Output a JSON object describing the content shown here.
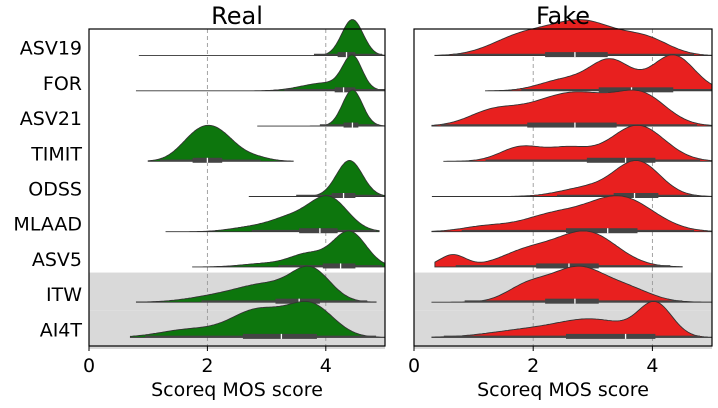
{
  "chart_data": {
    "type": "ridgeline-violin",
    "xlabel": "Scoreq MOS score",
    "xlim": [
      0,
      5
    ],
    "xticks": [
      0,
      2,
      4
    ],
    "categories": [
      "ASV19",
      "FOR",
      "ASV21",
      "TIMIT",
      "ODSS",
      "MLAAD",
      "ASV5",
      "ITW",
      "AI4T"
    ],
    "highlighted_categories": [
      "ITW",
      "AI4T"
    ],
    "grid_x": [
      2,
      4
    ],
    "panels": [
      {
        "title": "Real",
        "color": "#0d760d",
        "distributions": [
          {
            "category": "ASV19",
            "min": 0.85,
            "max": 5.0,
            "q1": 4.2,
            "median": 4.35,
            "q3": 4.5,
            "whisker_low": 3.8,
            "whisker_high": 4.95,
            "modes": [
              {
                "x": 4.45,
                "h": 1.0,
                "w": 0.18
              }
            ]
          },
          {
            "category": "FOR",
            "min": 0.8,
            "max": 5.0,
            "q1": 4.15,
            "median": 4.3,
            "q3": 4.5,
            "whisker_low": 3.3,
            "whisker_high": 5.0,
            "modes": [
              {
                "x": 4.45,
                "h": 1.0,
                "w": 0.16
              },
              {
                "x": 4.0,
                "h": 0.25,
                "w": 0.4
              }
            ]
          },
          {
            "category": "ASV21",
            "min": 2.85,
            "max": 5.0,
            "q1": 4.3,
            "median": 4.45,
            "q3": 4.55,
            "whisker_low": 3.9,
            "whisker_high": 4.9,
            "modes": [
              {
                "x": 4.45,
                "h": 1.0,
                "w": 0.17
              }
            ]
          },
          {
            "category": "TIMIT",
            "min": 1.0,
            "max": 3.45,
            "q1": 1.75,
            "median": 2.0,
            "q3": 2.25,
            "whisker_low": 1.2,
            "whisker_high": 2.9,
            "modes": [
              {
                "x": 1.85,
                "h": 1.0,
                "w": 0.3
              },
              {
                "x": 2.25,
                "h": 0.75,
                "w": 0.28
              },
              {
                "x": 2.8,
                "h": 0.15,
                "w": 0.25
              }
            ]
          },
          {
            "category": "ODSS",
            "min": 2.7,
            "max": 5.0,
            "q1": 4.1,
            "median": 4.3,
            "q3": 4.5,
            "whisker_low": 3.5,
            "whisker_high": 4.95,
            "modes": [
              {
                "x": 4.4,
                "h": 1.0,
                "w": 0.22
              }
            ]
          },
          {
            "category": "MLAAD",
            "min": 1.3,
            "max": 4.9,
            "q1": 3.55,
            "median": 3.9,
            "q3": 4.2,
            "whisker_low": 2.75,
            "whisker_high": 4.85,
            "modes": [
              {
                "x": 4.05,
                "h": 1.0,
                "w": 0.32
              },
              {
                "x": 3.4,
                "h": 0.4,
                "w": 0.35
              },
              {
                "x": 2.7,
                "h": 0.12,
                "w": 0.35
              }
            ]
          },
          {
            "category": "ASV5",
            "min": 1.75,
            "max": 5.0,
            "q1": 3.95,
            "median": 4.25,
            "q3": 4.5,
            "whisker_low": 3.2,
            "whisker_high": 4.95,
            "modes": [
              {
                "x": 4.4,
                "h": 1.0,
                "w": 0.28
              },
              {
                "x": 3.7,
                "h": 0.35,
                "w": 0.3
              },
              {
                "x": 3.0,
                "h": 0.1,
                "w": 0.4
              }
            ]
          },
          {
            "category": "ITW",
            "min": 0.8,
            "max": 4.85,
            "q1": 3.15,
            "median": 3.55,
            "q3": 3.9,
            "whisker_low": 1.9,
            "whisker_high": 4.7,
            "modes": [
              {
                "x": 3.75,
                "h": 1.0,
                "w": 0.33
              },
              {
                "x": 3.0,
                "h": 0.5,
                "w": 0.45
              },
              {
                "x": 2.2,
                "h": 0.2,
                "w": 0.5
              }
            ]
          },
          {
            "category": "AI4T",
            "min": 0.7,
            "max": 5.0,
            "q1": 2.6,
            "median": 3.25,
            "q3": 3.85,
            "whisker_low": 0.95,
            "whisker_high": 4.85,
            "modes": [
              {
                "x": 3.75,
                "h": 1.0,
                "w": 0.38
              },
              {
                "x": 2.85,
                "h": 0.85,
                "w": 0.45
              },
              {
                "x": 1.7,
                "h": 0.25,
                "w": 0.5
              }
            ]
          }
        ]
      },
      {
        "title": "Fake",
        "color": "#e8201f",
        "distributions": [
          {
            "category": "ASV19",
            "min": 0.35,
            "max": 5.0,
            "q1": 2.2,
            "median": 2.7,
            "q3": 3.25,
            "whisker_low": 0.65,
            "whisker_high": 4.7,
            "modes": [
              {
                "x": 2.85,
                "h": 1.0,
                "w": 0.55
              },
              {
                "x": 1.8,
                "h": 0.55,
                "w": 0.5
              },
              {
                "x": 3.9,
                "h": 0.45,
                "w": 0.4
              }
            ]
          },
          {
            "category": "FOR",
            "min": 1.2,
            "max": 5.0,
            "q1": 3.1,
            "median": 3.65,
            "q3": 4.35,
            "whisker_low": 1.8,
            "whisker_high": 5.0,
            "modes": [
              {
                "x": 3.3,
                "h": 0.85,
                "w": 0.35
              },
              {
                "x": 4.35,
                "h": 1.0,
                "w": 0.35
              },
              {
                "x": 2.5,
                "h": 0.3,
                "w": 0.4
              }
            ]
          },
          {
            "category": "ASV21",
            "min": 0.3,
            "max": 5.0,
            "q1": 1.9,
            "median": 2.7,
            "q3": 3.4,
            "whisker_low": 0.45,
            "whisker_high": 4.75,
            "modes": [
              {
                "x": 2.7,
                "h": 1.0,
                "w": 0.75
              },
              {
                "x": 3.85,
                "h": 0.7,
                "w": 0.4
              },
              {
                "x": 1.3,
                "h": 0.35,
                "w": 0.4
              }
            ]
          },
          {
            "category": "TIMIT",
            "min": 0.5,
            "max": 5.0,
            "q1": 2.9,
            "median": 3.55,
            "q3": 4.05,
            "whisker_low": 1.2,
            "whisker_high": 4.8,
            "modes": [
              {
                "x": 3.75,
                "h": 1.0,
                "w": 0.45
              },
              {
                "x": 1.8,
                "h": 0.4,
                "w": 0.35
              },
              {
                "x": 2.6,
                "h": 0.35,
                "w": 0.35
              }
            ]
          },
          {
            "category": "ODSS",
            "min": 0.3,
            "max": 5.0,
            "q1": 3.35,
            "median": 3.7,
            "q3": 4.1,
            "whisker_low": 2.4,
            "whisker_high": 4.75,
            "modes": [
              {
                "x": 3.75,
                "h": 1.0,
                "w": 0.38
              },
              {
                "x": 2.9,
                "h": 0.25,
                "w": 0.45
              }
            ]
          },
          {
            "category": "MLAAD",
            "min": 0.3,
            "max": 5.0,
            "q1": 2.55,
            "median": 3.25,
            "q3": 3.75,
            "whisker_low": 0.8,
            "whisker_high": 4.7,
            "modes": [
              {
                "x": 3.45,
                "h": 1.0,
                "w": 0.55
              },
              {
                "x": 2.3,
                "h": 0.45,
                "w": 0.5
              },
              {
                "x": 1.2,
                "h": 0.15,
                "w": 0.4
              }
            ]
          },
          {
            "category": "ASV5",
            "min": 0.35,
            "max": 4.5,
            "q1": 2.05,
            "median": 2.6,
            "q3": 3.1,
            "whisker_low": 0.7,
            "whisker_high": 4.3,
            "modes": [
              {
                "x": 2.9,
                "h": 1.0,
                "w": 0.5
              },
              {
                "x": 0.65,
                "h": 0.35,
                "w": 0.22
              },
              {
                "x": 1.9,
                "h": 0.45,
                "w": 0.45
              }
            ]
          },
          {
            "category": "ITW",
            "min": 0.3,
            "max": 5.0,
            "q1": 2.2,
            "median": 2.7,
            "q3": 3.1,
            "whisker_low": 0.85,
            "whisker_high": 4.5,
            "modes": [
              {
                "x": 2.75,
                "h": 1.0,
                "w": 0.45
              },
              {
                "x": 1.9,
                "h": 0.45,
                "w": 0.35
              },
              {
                "x": 3.6,
                "h": 0.35,
                "w": 0.4
              }
            ]
          },
          {
            "category": "AI4T",
            "min": 0.3,
            "max": 5.0,
            "q1": 2.55,
            "median": 3.55,
            "q3": 4.05,
            "whisker_low": 0.5,
            "whisker_high": 4.8,
            "modes": [
              {
                "x": 4.05,
                "h": 1.0,
                "w": 0.28
              },
              {
                "x": 3.0,
                "h": 0.55,
                "w": 0.6
              },
              {
                "x": 1.8,
                "h": 0.2,
                "w": 0.6
              }
            ]
          }
        ]
      }
    ]
  }
}
